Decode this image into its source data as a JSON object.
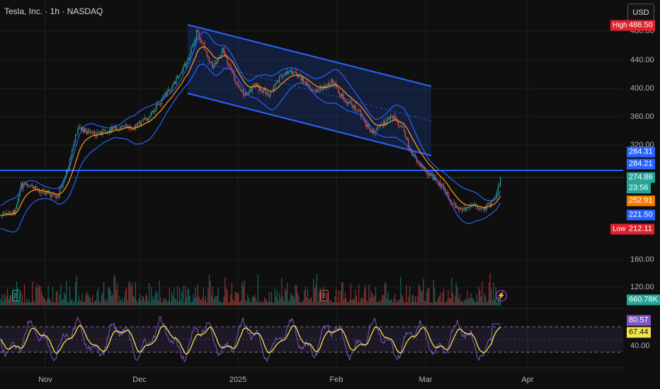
{
  "header": {
    "title": "Tesla, Inc. · 1h · NASDAQ",
    "currency": "USD"
  },
  "price_axis": [
    "480.00",
    "440.00",
    "400.00",
    "360.00",
    "320.00"
  ],
  "volume_axis": [
    "160.00",
    "120.00"
  ],
  "rsi_axis": [
    "40.00"
  ],
  "time_axis": [
    "Nov",
    "Dec",
    "2025",
    "Feb",
    "Mar",
    "Apr"
  ],
  "tags": {
    "high_label": "High",
    "high_value": "486.50",
    "low_label": "Low",
    "low_value": "212.11",
    "t1": "284.31",
    "t2": "284.21",
    "t3": "274.86",
    "countdown": "23:56",
    "t5": "252.91",
    "t6": "221.50",
    "volume": "660.78K",
    "rsi1": "80.57",
    "rsi2": "67.44"
  },
  "events": {
    "earnings": "E",
    "dividend": "E"
  },
  "colors": {
    "bg": "#0f0f0f",
    "up": "#26a69a",
    "down": "#ef5350",
    "band": "#2962ff",
    "ema": "#f7931a",
    "rsi": "#7e57c2",
    "rsi_ma": "#f5e34a",
    "high": "#e0222e",
    "blue_tag": "#2962ff"
  }
}
